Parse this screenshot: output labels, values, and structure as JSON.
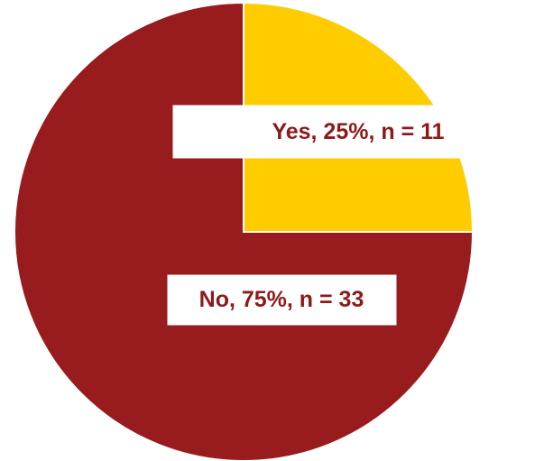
{
  "chart_data": {
    "type": "pie",
    "categories": [
      "Yes",
      "No"
    ],
    "values": [
      25,
      75
    ],
    "counts": [
      11,
      33
    ],
    "data_labels": [
      "Yes, 25%, n = 11",
      "No, 75%, n = 33"
    ],
    "start_angle_deg": 0,
    "direction": "clockwise",
    "title": "",
    "legend": "none"
  },
  "colors": {
    "yes": "#ffcc00",
    "no": "#981b1e",
    "label_text": "#8c1a1a",
    "label_box": "#ffffff"
  }
}
